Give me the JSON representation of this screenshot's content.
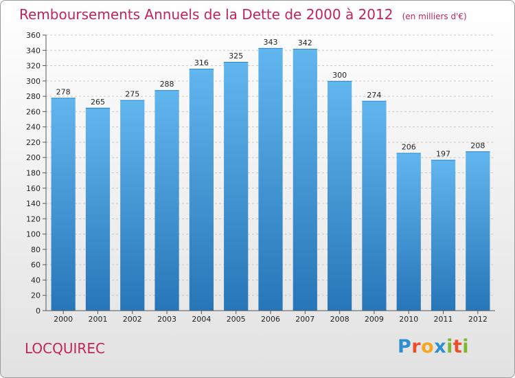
{
  "chart_data": {
    "type": "bar",
    "title": "Remboursements Annuels de la Dette de 2000 à 2012",
    "subtitle": "(en milliers d'€)",
    "categories": [
      "2000",
      "2001",
      "2002",
      "2003",
      "2004",
      "2005",
      "2006",
      "2007",
      "2008",
      "2009",
      "2010",
      "2011",
      "2012"
    ],
    "values": [
      278,
      265,
      275,
      288,
      316,
      325,
      343,
      342,
      300,
      274,
      206,
      197,
      208
    ],
    "ylim": [
      0,
      360
    ],
    "ytick_step": 20,
    "grid": true,
    "colors": {
      "bar_top": "#62b6ee",
      "bar_bottom": "#2776b8",
      "text": "#c0245c"
    }
  },
  "footer": {
    "commune": "LOCQUIREC"
  },
  "logo": {
    "text": "Proxiti",
    "letter_colors": [
      "#2e8fd0",
      "#e94f2d",
      "#f5a623",
      "#2e8fd0",
      "#7cb82f",
      "#e94f2d",
      "#7cb82f"
    ]
  }
}
